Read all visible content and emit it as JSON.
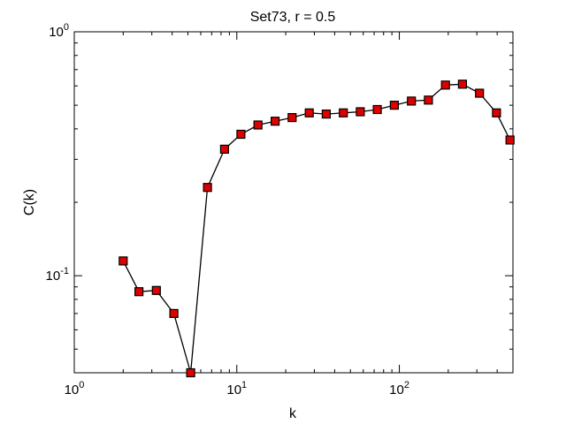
{
  "chart_data": {
    "type": "line",
    "title": "Set73, r = 0.5",
    "xlabel": "k",
    "ylabel": "C(k)",
    "xscale": "log",
    "yscale": "log",
    "xlim": [
      1,
      500
    ],
    "ylim": [
      0.04,
      1
    ],
    "grid": false,
    "x_ticks": [
      {
        "value": 1,
        "base": "10",
        "exp": "0"
      },
      {
        "value": 10,
        "base": "10",
        "exp": "1"
      },
      {
        "value": 100,
        "base": "10",
        "exp": "2"
      }
    ],
    "y_ticks": [
      {
        "value": 0.1,
        "base": "10",
        "exp": "-1"
      },
      {
        "value": 1,
        "base": "10",
        "exp": "0"
      }
    ],
    "series": [
      {
        "marker": "square",
        "marker_color": "#dd0000",
        "line_color": "#000000",
        "x": [
          2,
          2.5,
          3.2,
          4.1,
          5.2,
          6.6,
          8.4,
          10.6,
          13.5,
          17.2,
          21.9,
          27.9,
          35.5,
          45.2,
          57.5,
          73.2,
          93.2,
          118.6,
          150.9,
          192.1,
          244.5,
          311.2,
          396,
          480
        ],
        "y": [
          0.115,
          0.086,
          0.087,
          0.07,
          0.04,
          0.23,
          0.33,
          0.38,
          0.415,
          0.43,
          0.445,
          0.465,
          0.46,
          0.465,
          0.47,
          0.48,
          0.5,
          0.52,
          0.525,
          0.605,
          0.61,
          0.56,
          0.465,
          0.36
        ]
      }
    ]
  }
}
